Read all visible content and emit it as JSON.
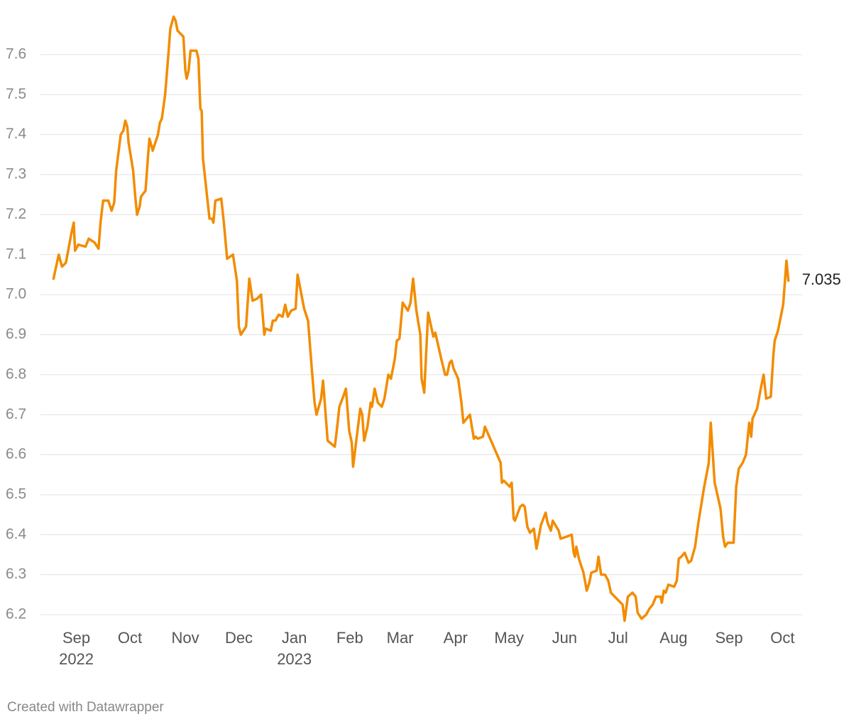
{
  "chart_data": {
    "type": "line",
    "credit": "Created with Datawrapper",
    "xlim": [
      2022.611,
      2023.778
    ],
    "ylim": [
      6.18,
      7.7
    ],
    "yticks": [
      6.2,
      6.3,
      6.4,
      6.5,
      6.6,
      6.7,
      6.8,
      6.9,
      {
        "value": 7.0,
        "label": "7.0"
      },
      7.1,
      7.2,
      7.3,
      7.4,
      7.5,
      7.6
    ],
    "xticks": [
      {
        "value": 2022.666,
        "label": "Sep"
      },
      {
        "value": 2022.748,
        "label": "Oct"
      },
      {
        "value": 2022.833,
        "label": "Nov"
      },
      {
        "value": 2022.915,
        "label": "Dec"
      },
      {
        "value": 2023.0,
        "label": "Jan"
      },
      {
        "value": 2023.085,
        "label": "Feb"
      },
      {
        "value": 2023.162,
        "label": "Mar"
      },
      {
        "value": 2023.247,
        "label": "Apr"
      },
      {
        "value": 2023.329,
        "label": "May"
      },
      {
        "value": 2023.414,
        "label": "Jun"
      },
      {
        "value": 2023.496,
        "label": "Jul"
      },
      {
        "value": 2023.581,
        "label": "Aug"
      },
      {
        "value": 2023.666,
        "label": "Sep"
      },
      {
        "value": 2023.748,
        "label": "Oct"
      }
    ],
    "x_year_labels": [
      {
        "value": 2022.666,
        "label": "2022"
      },
      {
        "value": 2023.0,
        "label": "2023"
      }
    ],
    "grid": true,
    "series": [
      {
        "name": null,
        "color": "#f28c00",
        "x": [
          2022.631,
          2022.639,
          2022.644,
          2022.65,
          2022.658,
          2022.662,
          2022.664,
          2022.669,
          2022.68,
          2022.685,
          2022.694,
          2022.7,
          2022.703,
          2022.707,
          2022.715,
          2022.72,
          2022.724,
          2022.727,
          2022.734,
          2022.738,
          2022.741,
          2022.744,
          2022.746,
          2022.753,
          2022.756,
          2022.759,
          2022.763,
          2022.765,
          2022.772,
          2022.776,
          2022.778,
          2022.783,
          2022.791,
          2022.794,
          2022.797,
          2022.802,
          2022.806,
          2022.81,
          2022.815,
          2022.818,
          2022.821,
          2022.83,
          2022.833,
          2022.835,
          2022.838,
          2022.841,
          2022.85,
          2022.853,
          2022.856,
          2022.858,
          2022.86,
          2022.87,
          2022.874,
          2022.876,
          2022.879,
          2022.888,
          2022.892,
          2022.897,
          2022.906,
          2022.912,
          2022.915,
          2022.918,
          2022.926,
          2022.931,
          2022.936,
          2022.943,
          2022.949,
          2022.954,
          2022.956,
          2022.964,
          2022.967,
          2022.971,
          2022.976,
          2022.982,
          2022.986,
          2022.99,
          2022.995,
          2023.002,
          2023.005,
          2023.015,
          2023.021,
          2023.026,
          2023.031,
          2023.034,
          2023.041,
          2023.044,
          2023.051,
          2023.062,
          2023.065,
          2023.069,
          2023.076,
          2023.079,
          2023.084,
          2023.088,
          2023.09,
          2023.096,
          2023.101,
          2023.104,
          2023.107,
          2023.112,
          2023.117,
          2023.119,
          2023.123,
          2023.128,
          2023.134,
          2023.138,
          2023.144,
          2023.148,
          2023.154,
          2023.157,
          2023.161,
          2023.166,
          2023.174,
          2023.178,
          2023.182,
          2023.187,
          2023.193,
          2023.195,
          2023.199,
          2023.205,
          2023.213,
          2023.216,
          2023.225,
          2023.231,
          2023.234,
          2023.238,
          2023.241,
          2023.244,
          2023.251,
          2023.256,
          2023.259,
          2023.269,
          2023.275,
          2023.278,
          2023.281,
          2023.289,
          2023.292,
          2023.316,
          2023.318,
          2023.321,
          2023.33,
          2023.333,
          2023.336,
          2023.338,
          2023.346,
          2023.35,
          2023.353,
          2023.357,
          2023.361,
          2023.367,
          2023.371,
          2023.378,
          2023.385,
          2023.388,
          2023.393,
          2023.396,
          2023.405,
          2023.408,
          2023.417,
          2023.425,
          2023.428,
          2023.43,
          2023.432,
          2023.436,
          2023.443,
          2023.448,
          2023.452,
          2023.455,
          2023.463,
          2023.466,
          2023.47,
          2023.476,
          2023.481,
          2023.485,
          2023.503,
          2023.506,
          2023.511,
          2023.518,
          2023.523,
          2023.526,
          2023.532,
          2023.539,
          2023.544,
          2023.549,
          2023.554,
          2023.561,
          2023.563,
          2023.566,
          2023.569,
          2023.573,
          2023.582,
          2023.586,
          2023.589,
          2023.593,
          2023.598,
          2023.604,
          2023.608,
          2023.614,
          2023.619,
          2023.628,
          2023.635,
          2023.638,
          2023.644,
          2023.653,
          2023.657,
          2023.66,
          2023.664,
          2023.673,
          2023.677,
          2023.681,
          2023.687,
          2023.692,
          2023.697,
          2023.7,
          2023.702,
          2023.709,
          2023.714,
          2023.719,
          2023.723,
          2023.73,
          2023.734,
          2023.736,
          2023.741,
          2023.749,
          2023.754,
          2023.757
        ],
        "values": [
          7.04,
          7.1,
          7.07,
          7.08,
          7.15,
          7.18,
          7.11,
          7.125,
          7.12,
          7.14,
          7.13,
          7.115,
          7.18,
          7.235,
          7.235,
          7.21,
          7.23,
          7.31,
          7.4,
          7.41,
          7.435,
          7.42,
          7.38,
          7.31,
          7.25,
          7.2,
          7.22,
          7.245,
          7.26,
          7.35,
          7.39,
          7.36,
          7.4,
          7.43,
          7.44,
          7.5,
          7.58,
          7.665,
          7.695,
          7.685,
          7.66,
          7.645,
          7.56,
          7.54,
          7.56,
          7.61,
          7.61,
          7.59,
          7.465,
          7.46,
          7.34,
          7.19,
          7.19,
          7.18,
          7.235,
          7.24,
          7.18,
          7.09,
          7.1,
          7.035,
          6.92,
          6.9,
          6.92,
          7.04,
          6.985,
          6.99,
          7.0,
          6.9,
          6.915,
          6.91,
          6.935,
          6.935,
          6.95,
          6.945,
          6.975,
          6.945,
          6.96,
          6.965,
          7.05,
          6.965,
          6.935,
          6.83,
          6.73,
          6.7,
          6.74,
          6.785,
          6.635,
          6.62,
          6.66,
          6.72,
          6.75,
          6.765,
          6.66,
          6.63,
          6.57,
          6.65,
          6.715,
          6.7,
          6.635,
          6.67,
          6.73,
          6.72,
          6.765,
          6.73,
          6.72,
          6.74,
          6.8,
          6.79,
          6.84,
          6.885,
          6.89,
          6.98,
          6.96,
          6.98,
          7.04,
          6.96,
          6.9,
          6.79,
          6.755,
          6.955,
          6.895,
          6.905,
          6.84,
          6.8,
          6.8,
          6.83,
          6.835,
          6.815,
          6.79,
          6.73,
          6.68,
          6.7,
          6.64,
          6.645,
          6.64,
          6.645,
          6.67,
          6.58,
          6.53,
          6.535,
          6.52,
          6.53,
          6.44,
          6.435,
          6.47,
          6.475,
          6.47,
          6.42,
          6.405,
          6.415,
          6.365,
          6.425,
          6.455,
          6.43,
          6.41,
          6.435,
          6.41,
          6.39,
          6.395,
          6.4,
          6.355,
          6.345,
          6.37,
          6.34,
          6.305,
          6.26,
          6.28,
          6.305,
          6.31,
          6.345,
          6.3,
          6.3,
          6.285,
          6.255,
          6.225,
          6.185,
          6.245,
          6.255,
          6.245,
          6.205,
          6.19,
          6.2,
          6.215,
          6.225,
          6.245,
          6.245,
          6.23,
          6.26,
          6.255,
          6.275,
          6.27,
          6.285,
          6.34,
          6.345,
          6.355,
          6.33,
          6.335,
          6.37,
          6.43,
          6.52,
          6.58,
          6.68,
          6.53,
          6.465,
          6.395,
          6.37,
          6.38,
          6.38,
          6.52,
          6.565,
          6.58,
          6.6,
          6.68,
          6.645,
          6.69,
          6.715,
          6.76,
          6.8,
          6.74,
          6.745,
          6.85,
          6.885,
          6.91,
          6.975,
          7.085,
          7.035
        ]
      }
    ]
  }
}
